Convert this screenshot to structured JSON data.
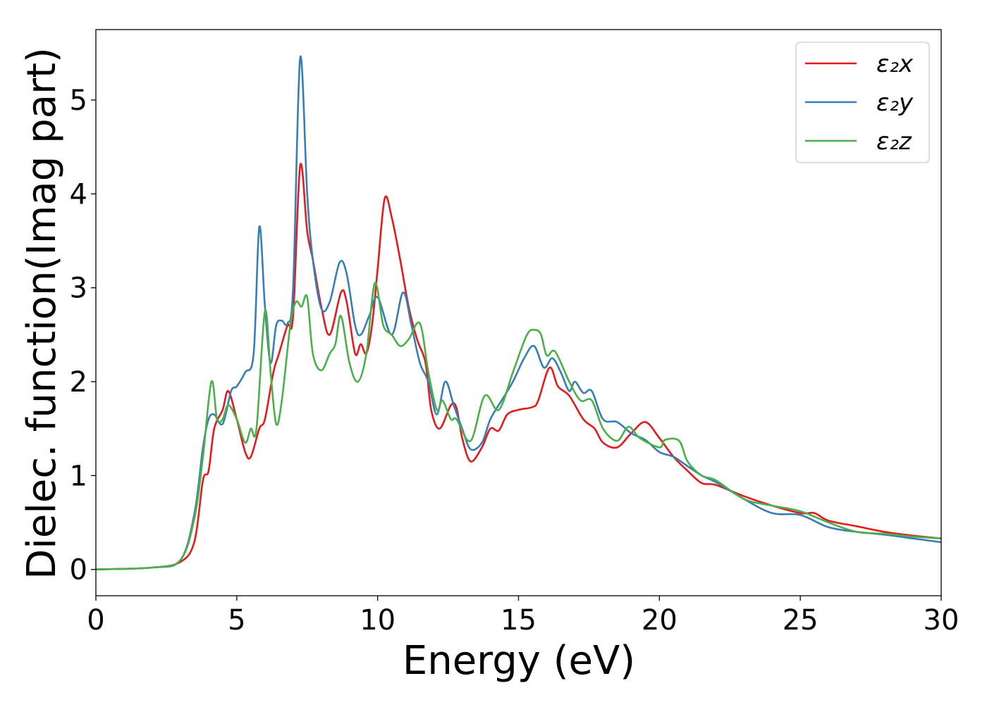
{
  "chart_data": {
    "type": "line",
    "title": "",
    "xlabel": "Energy (eV)",
    "ylabel": "Dielec. function(Imag part)",
    "xlim": [
      0,
      30
    ],
    "ylim": [
      -0.28,
      5.75
    ],
    "xticks": [
      0,
      5,
      10,
      15,
      20,
      25,
      30
    ],
    "yticks": [
      0,
      1,
      2,
      3,
      4,
      5
    ],
    "grid": false,
    "legend_position": "top-right",
    "series": [
      {
        "name": "ε₂x",
        "color": "#e41a1c",
        "x": [
          0,
          2,
          3,
          3.5,
          3.8,
          4.0,
          4.2,
          4.5,
          4.7,
          5.0,
          5.3,
          5.5,
          5.8,
          6.0,
          6.3,
          6.5,
          6.8,
          7.0,
          7.25,
          7.5,
          7.7,
          8.0,
          8.3,
          8.7,
          8.9,
          9.2,
          9.4,
          9.6,
          9.8,
          10.0,
          10.25,
          10.5,
          10.8,
          11.1,
          11.4,
          11.7,
          11.9,
          12.2,
          12.6,
          12.8,
          13.0,
          13.3,
          13.7,
          14.0,
          14.3,
          14.6,
          15.0,
          15.5,
          15.7,
          16.1,
          16.4,
          16.8,
          17.3,
          17.7,
          18.0,
          18.5,
          19.0,
          19.5,
          20.0,
          20.5,
          21.0,
          21.5,
          22.0,
          23,
          24,
          25,
          25.5,
          26,
          27,
          28,
          29,
          30
        ],
        "y": [
          0,
          0.02,
          0.08,
          0.3,
          0.95,
          1.05,
          1.5,
          1.7,
          1.9,
          1.6,
          1.25,
          1.2,
          1.5,
          1.6,
          2.1,
          2.3,
          2.6,
          2.7,
          4.3,
          3.6,
          3.3,
          2.8,
          2.5,
          2.95,
          2.85,
          2.3,
          2.4,
          2.3,
          2.6,
          3.2,
          3.95,
          3.75,
          3.3,
          2.8,
          2.45,
          2.2,
          1.7,
          1.5,
          1.75,
          1.72,
          1.4,
          1.15,
          1.3,
          1.5,
          1.48,
          1.65,
          1.7,
          1.73,
          1.8,
          2.15,
          1.95,
          1.85,
          1.6,
          1.5,
          1.35,
          1.3,
          1.45,
          1.57,
          1.4,
          1.2,
          1.05,
          0.92,
          0.9,
          0.78,
          0.68,
          0.6,
          0.6,
          0.52,
          0.46,
          0.4,
          0.36,
          0.33
        ]
      },
      {
        "name": "ε₂y",
        "color": "#377eb8",
        "x": [
          0,
          2,
          3,
          3.5,
          3.8,
          4.0,
          4.2,
          4.5,
          4.8,
          5.0,
          5.3,
          5.6,
          5.8,
          6.0,
          6.2,
          6.4,
          6.6,
          6.8,
          7.0,
          7.25,
          7.5,
          7.7,
          8.0,
          8.3,
          8.65,
          8.9,
          9.2,
          9.4,
          9.7,
          10.0,
          10.5,
          10.9,
          11.2,
          11.5,
          11.8,
          12.1,
          12.4,
          12.7,
          13.0,
          13.3,
          13.7,
          14.0,
          14.4,
          14.8,
          15.2,
          15.55,
          15.9,
          16.2,
          16.5,
          16.8,
          17.0,
          17.3,
          17.6,
          18.0,
          18.5,
          19.0,
          19.5,
          20.0,
          20.5,
          21.0,
          21.5,
          22,
          23,
          24,
          25,
          26,
          27,
          28,
          29,
          30
        ],
        "y": [
          0,
          0.02,
          0.1,
          0.6,
          1.3,
          1.6,
          1.65,
          1.55,
          1.9,
          1.95,
          2.1,
          2.3,
          3.65,
          2.8,
          2.2,
          2.6,
          2.65,
          2.62,
          3.0,
          5.45,
          4.0,
          3.3,
          2.78,
          2.85,
          3.27,
          3.15,
          2.6,
          2.5,
          2.7,
          2.9,
          2.5,
          2.95,
          2.6,
          2.2,
          2.0,
          1.65,
          2.0,
          1.75,
          1.5,
          1.28,
          1.35,
          1.6,
          1.8,
          2.0,
          2.25,
          2.38,
          2.15,
          2.25,
          2.1,
          1.9,
          2.0,
          1.88,
          1.9,
          1.6,
          1.57,
          1.45,
          1.38,
          1.25,
          1.2,
          1.1,
          1.0,
          0.93,
          0.75,
          0.6,
          0.58,
          0.45,
          0.4,
          0.37,
          0.33,
          0.29
        ]
      },
      {
        "name": "ε₂z",
        "color": "#4daf4a",
        "x": [
          0,
          2,
          3,
          3.5,
          3.8,
          4.1,
          4.3,
          4.5,
          4.7,
          5.0,
          5.3,
          5.5,
          5.7,
          6.0,
          6.2,
          6.4,
          6.6,
          6.9,
          7.1,
          7.3,
          7.5,
          7.7,
          8.0,
          8.3,
          8.5,
          8.7,
          9.0,
          9.3,
          9.6,
          9.9,
          10.2,
          10.5,
          10.8,
          11.1,
          11.5,
          11.8,
          12.1,
          12.3,
          12.6,
          12.8,
          13.3,
          13.8,
          14.3,
          14.8,
          15.3,
          15.6,
          15.8,
          16.0,
          16.3,
          16.8,
          17.2,
          17.6,
          18.0,
          18.5,
          18.9,
          19.3,
          20.0,
          20.2,
          20.7,
          21.0,
          21.5,
          22,
          23,
          24,
          25,
          26,
          27,
          28,
          29,
          30
        ],
        "y": [
          0,
          0.02,
          0.1,
          0.55,
          1.2,
          2.0,
          1.6,
          1.6,
          1.75,
          1.6,
          1.35,
          1.5,
          1.5,
          2.75,
          2.1,
          1.55,
          1.8,
          2.6,
          2.85,
          2.8,
          2.9,
          2.3,
          2.12,
          2.3,
          2.4,
          2.7,
          2.2,
          2.0,
          2.3,
          3.05,
          2.6,
          2.5,
          2.38,
          2.45,
          2.62,
          2.1,
          1.7,
          1.8,
          1.6,
          1.6,
          1.37,
          1.85,
          1.7,
          2.1,
          2.5,
          2.55,
          2.5,
          2.28,
          2.32,
          2.0,
          1.8,
          1.8,
          1.5,
          1.37,
          1.52,
          1.4,
          1.3,
          1.38,
          1.37,
          1.15,
          1.0,
          0.95,
          0.75,
          0.68,
          0.62,
          0.5,
          0.4,
          0.38,
          0.35,
          0.33
        ]
      }
    ]
  }
}
